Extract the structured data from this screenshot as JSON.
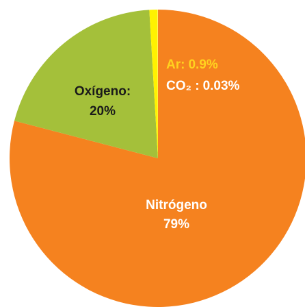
{
  "chart_data": {
    "type": "pie",
    "categories": [
      "Nitrógeno",
      "Oxígeno:",
      "Ar:",
      "CO₂ :"
    ],
    "values": [
      79,
      20,
      0.9,
      0.03
    ],
    "value_labels": [
      "79%",
      "20%",
      "0.9%",
      "0.03%"
    ],
    "colors": [
      "#f5821f",
      "#a4c03a",
      "#fff200",
      "#fff9c4"
    ],
    "label_colors": [
      "#ffffff",
      "#1a1a1a",
      "#ffd21f",
      "#ffffff"
    ]
  }
}
